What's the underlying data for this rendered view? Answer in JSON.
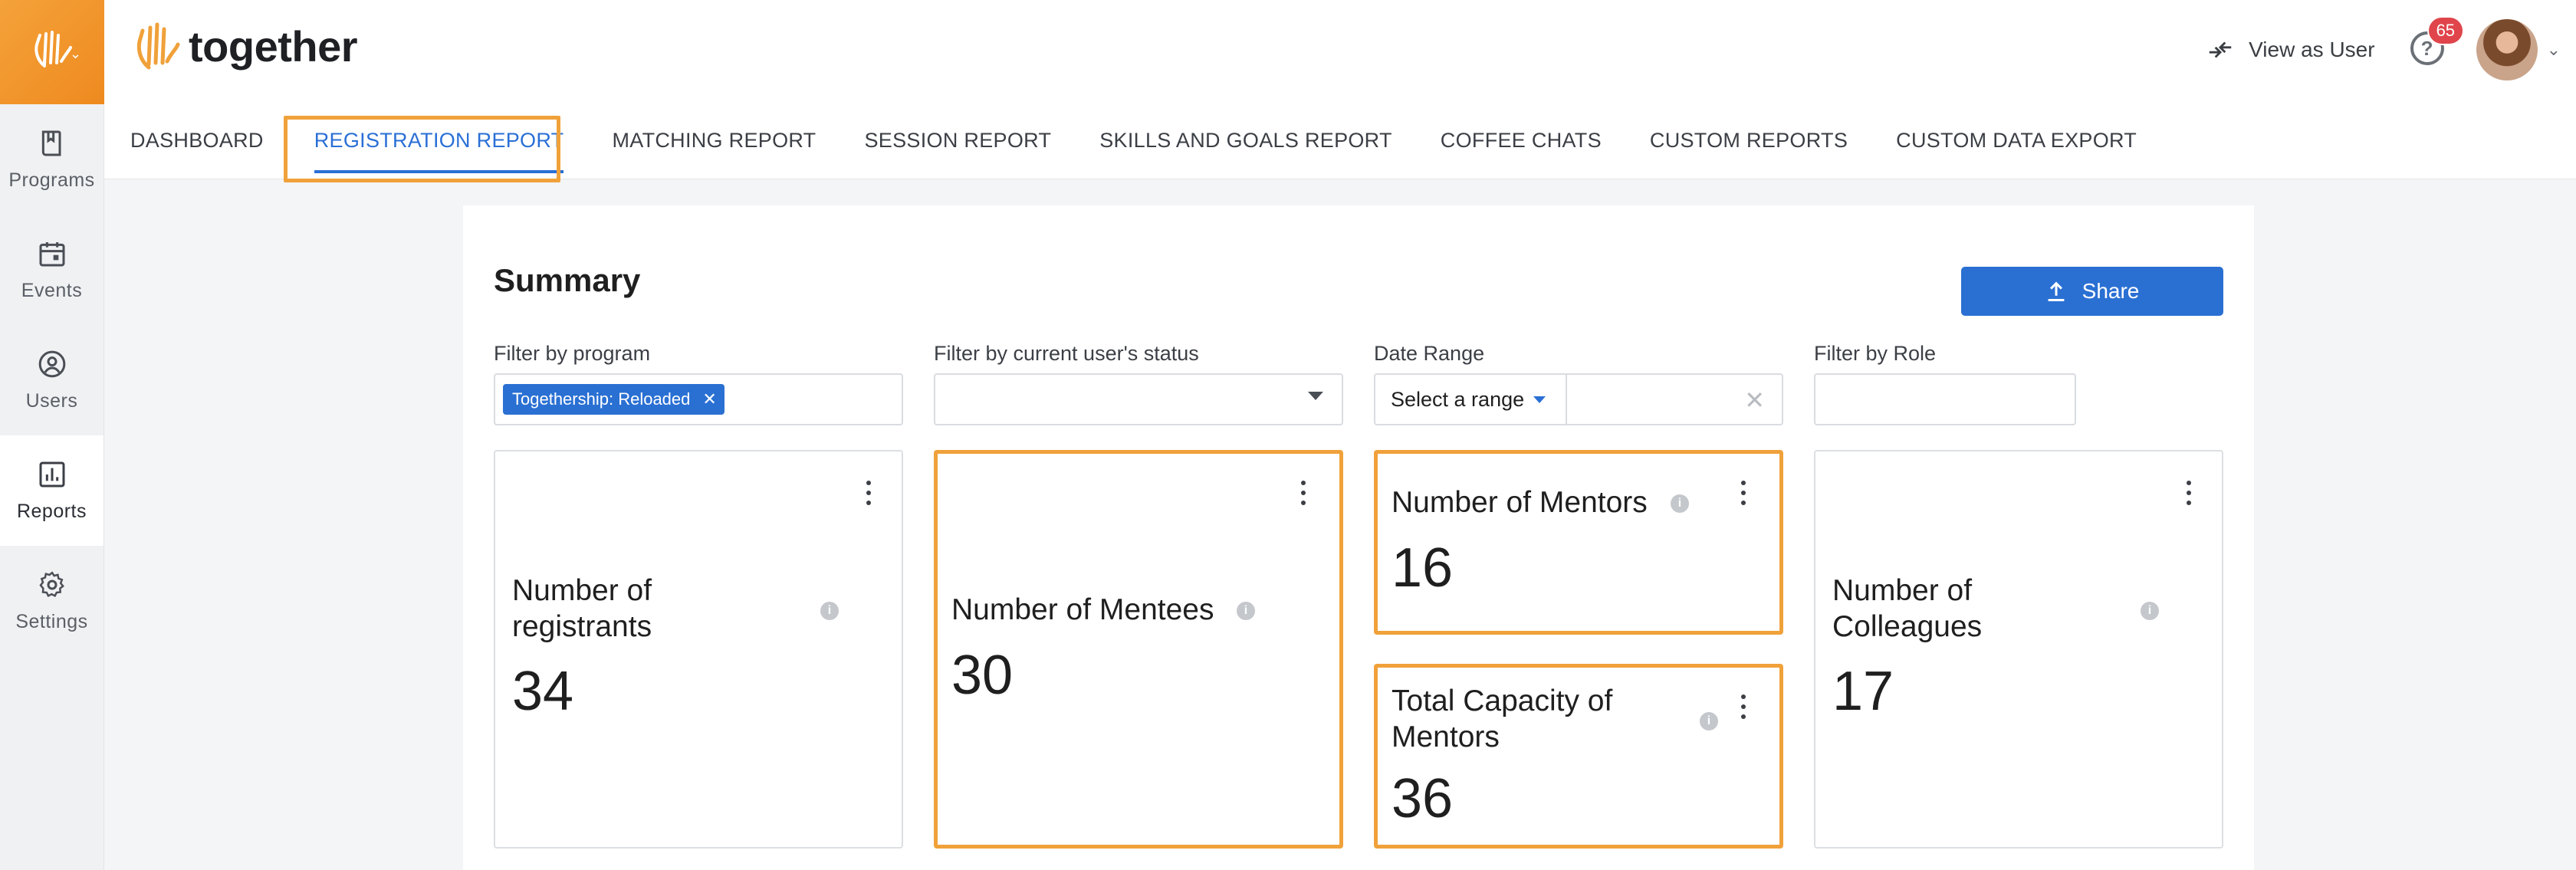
{
  "rail": {
    "items": [
      {
        "label": "Programs",
        "icon": "book-icon"
      },
      {
        "label": "Events",
        "icon": "calendar-icon"
      },
      {
        "label": "Users",
        "icon": "user-circle-icon"
      },
      {
        "label": "Reports",
        "icon": "bar-chart-icon"
      },
      {
        "label": "Settings",
        "icon": "gear-icon"
      }
    ]
  },
  "brand": {
    "name": "together"
  },
  "header": {
    "view_as_user": "View as User",
    "notification_count": "65",
    "help_glyph": "?"
  },
  "tabs": [
    {
      "label": "DASHBOARD"
    },
    {
      "label": "REGISTRATION REPORT"
    },
    {
      "label": "MATCHING REPORT"
    },
    {
      "label": "SESSION REPORT"
    },
    {
      "label": "SKILLS AND GOALS REPORT"
    },
    {
      "label": "COFFEE CHATS"
    },
    {
      "label": "CUSTOM REPORTS"
    },
    {
      "label": "CUSTOM DATA EXPORT"
    }
  ],
  "summary": {
    "title": "Summary",
    "share_label": "Share",
    "filters": {
      "program": {
        "label": "Filter by program",
        "chip": "Togethership: Reloaded"
      },
      "status": {
        "label": "Filter by current user's status",
        "value": ""
      },
      "date_range": {
        "label": "Date Range",
        "select": "Select a range"
      },
      "role": {
        "label": "Filter by Role",
        "value": ""
      }
    },
    "cards": [
      {
        "title_line1": "Number of",
        "title_line2": "registrants",
        "value": "34"
      },
      {
        "title": "Number of Mentees",
        "value": "30"
      },
      {
        "title": "Number of Mentors",
        "value": "16"
      },
      {
        "title_line1": "Total Capacity of",
        "title_line2": "Mentors",
        "value": "36"
      },
      {
        "title_line1": "Number of",
        "title_line2": "Colleagues",
        "value": "17"
      }
    ]
  },
  "colors": {
    "accent": "#2a70d3",
    "brand_orange": "#f0a13a",
    "badge": "#e0454b"
  }
}
